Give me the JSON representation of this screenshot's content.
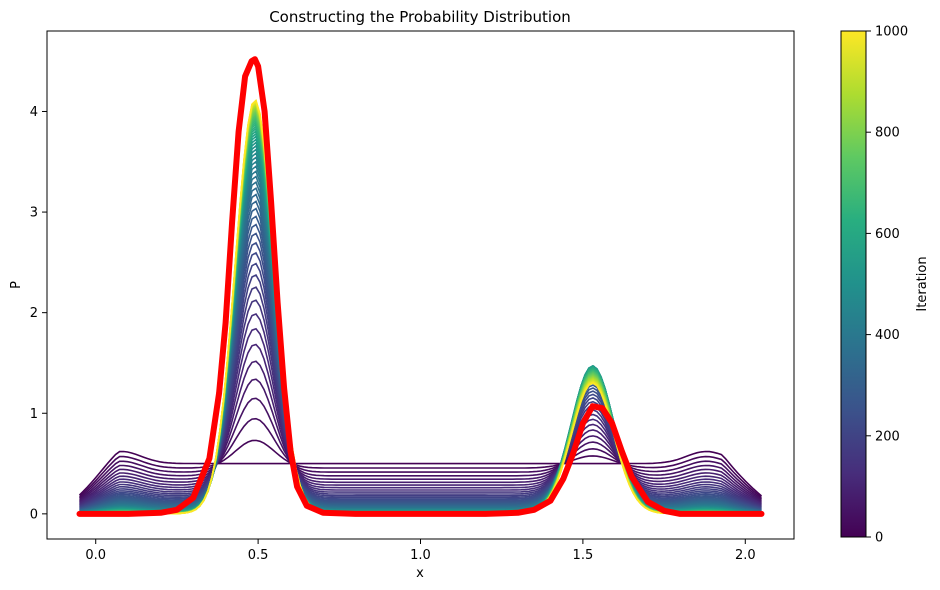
{
  "chart_data": {
    "type": "line",
    "title": "Constructing the Probability Distribution",
    "xlabel": "x",
    "ylabel": "P",
    "xlim": [
      -0.15,
      2.15
    ],
    "ylim": [
      -0.25,
      4.8
    ],
    "xticks": [
      0.0,
      0.5,
      1.0,
      1.5,
      2.0
    ],
    "xtick_labels": [
      "0.0",
      "0.5",
      "1.0",
      "1.5",
      "2.0"
    ],
    "yticks": [
      0,
      1,
      2,
      3,
      4
    ],
    "ytick_labels": [
      "0",
      "1",
      "2",
      "3",
      "4"
    ],
    "grid": false,
    "legend": null,
    "colormap": "viridis",
    "colorbar": {
      "label": "Iteration",
      "range": [
        0,
        1000
      ],
      "ticks": [
        0,
        200,
        400,
        600,
        800,
        1000
      ],
      "tick_labels": [
        "0",
        "200",
        "400",
        "600",
        "800",
        "1000"
      ]
    },
    "iteration_curves": {
      "x_range": [
        -0.05,
        2.05
      ],
      "iterations_start": 0,
      "iterations_end": 1000,
      "description_of_values": "curves evolve from a near-uniform start (~0.5) toward the final distribution; peaks grow at x≈0.49 and x≈1.53",
      "initial_level": 0.5,
      "left_peak": {
        "x": 0.49,
        "width_sd": 0.06,
        "max_height": 4.2
      },
      "right_peak": {
        "x": 1.53,
        "width_sd": 0.065,
        "max_height": 1.47,
        "final_height": 1.3
      }
    },
    "series": [
      {
        "color": "#ff0000",
        "x": [
          -0.05,
          0.0,
          0.1,
          0.2,
          0.25,
          0.3,
          0.35,
          0.38,
          0.4,
          0.42,
          0.44,
          0.46,
          0.48,
          0.49,
          0.5,
          0.52,
          0.54,
          0.56,
          0.58,
          0.6,
          0.62,
          0.65,
          0.7,
          0.8,
          1.0,
          1.2,
          1.3,
          1.35,
          1.4,
          1.44,
          1.47,
          1.5,
          1.53,
          1.56,
          1.59,
          1.62,
          1.65,
          1.7,
          1.75,
          1.8,
          1.9,
          2.0,
          2.05
        ],
        "values": [
          0.0,
          0.0,
          0.0,
          0.01,
          0.04,
          0.16,
          0.55,
          1.2,
          1.9,
          2.9,
          3.8,
          4.35,
          4.5,
          4.52,
          4.45,
          4.0,
          3.1,
          2.1,
          1.25,
          0.62,
          0.27,
          0.08,
          0.01,
          0.0,
          0.0,
          0.0,
          0.01,
          0.04,
          0.13,
          0.35,
          0.6,
          0.9,
          1.07,
          1.05,
          0.9,
          0.62,
          0.37,
          0.12,
          0.03,
          0.0,
          0.0,
          0.0,
          0.0
        ]
      }
    ]
  }
}
